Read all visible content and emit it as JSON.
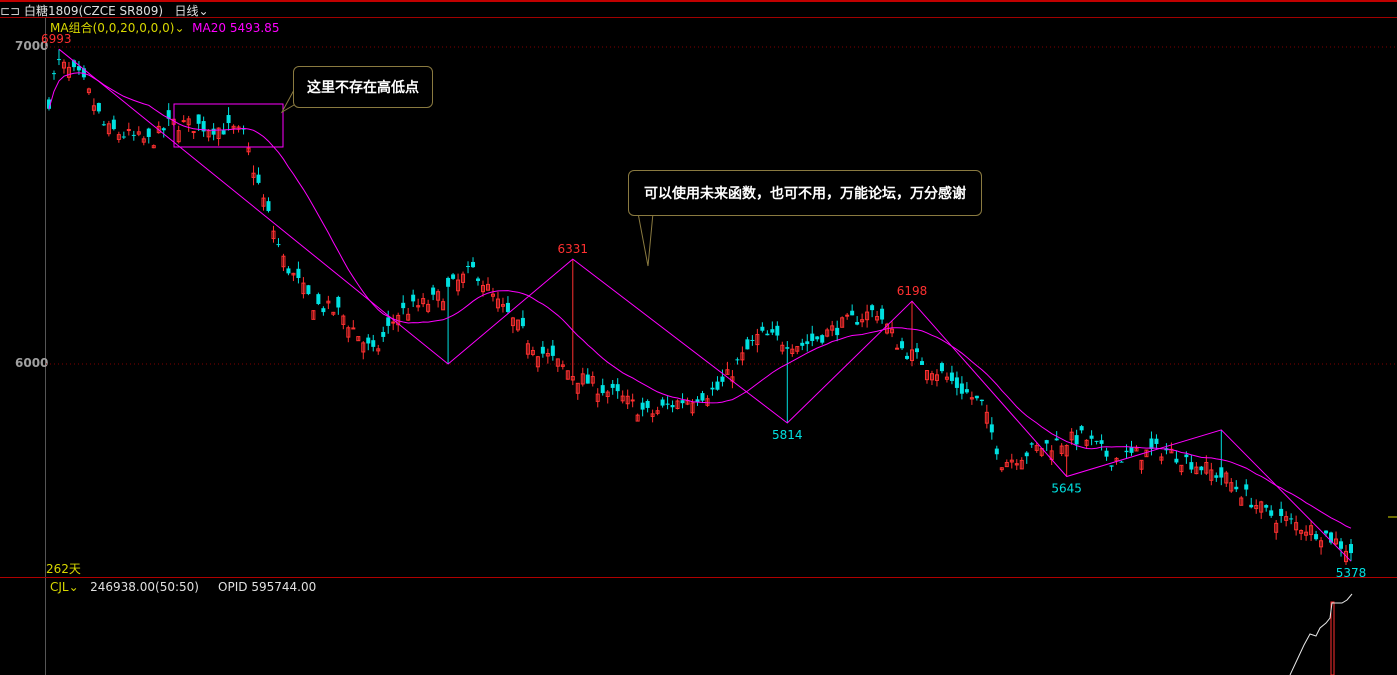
{
  "header": {
    "menu_icon": "link-icon",
    "symbol": "白糖1809(CZCE SR809)",
    "period": "日线",
    "period_icon": "chevron-down-icon"
  },
  "indicator": {
    "name": "MA组合(0,0,20,0,0,0)",
    "dropdown_icon": "chevron-down-icon",
    "ma_label": "MA20",
    "ma_value": "5493.85"
  },
  "volume": {
    "name": "CJL",
    "dropdown_icon": "chevron-down-icon",
    "value": "246938.00(50:50)",
    "opid_label": "OPID",
    "opid_value": "595744.00"
  },
  "days_label": "262天",
  "annotations": [
    {
      "text": "这里不存在高低点"
    },
    {
      "text": "可以使用未来函数，也可不用，万能论坛，万分感谢"
    }
  ],
  "colors": {
    "up": "#ff3030",
    "down": "#00e0e0",
    "ma": "#ff00ff",
    "zigzag": "#ff00ff",
    "grid": "#800000",
    "bubble_border": "#8a7a40"
  },
  "chart_data": {
    "type": "candlestick",
    "y_ticks": [
      "7000",
      "6000"
    ],
    "ylim": [
      5340,
      7080
    ],
    "bars": 262,
    "grid": true,
    "pivots": [
      {
        "type": "high",
        "price": 6993,
        "label": "6993"
      },
      {
        "type": "low",
        "price": 6000,
        "label": ""
      },
      {
        "type": "high",
        "price": 6331,
        "label": "6331"
      },
      {
        "type": "low",
        "price": 5814,
        "label": "5814"
      },
      {
        "type": "high",
        "price": 6198,
        "label": "6198"
      },
      {
        "type": "low",
        "price": 5645,
        "label": "5645"
      },
      {
        "type": "high",
        "price": 5792,
        "label": ""
      },
      {
        "type": "low",
        "price": 5378,
        "label": "5378"
      }
    ],
    "series": [
      {
        "name": "MA20",
        "last": 5493.85
      }
    ]
  }
}
